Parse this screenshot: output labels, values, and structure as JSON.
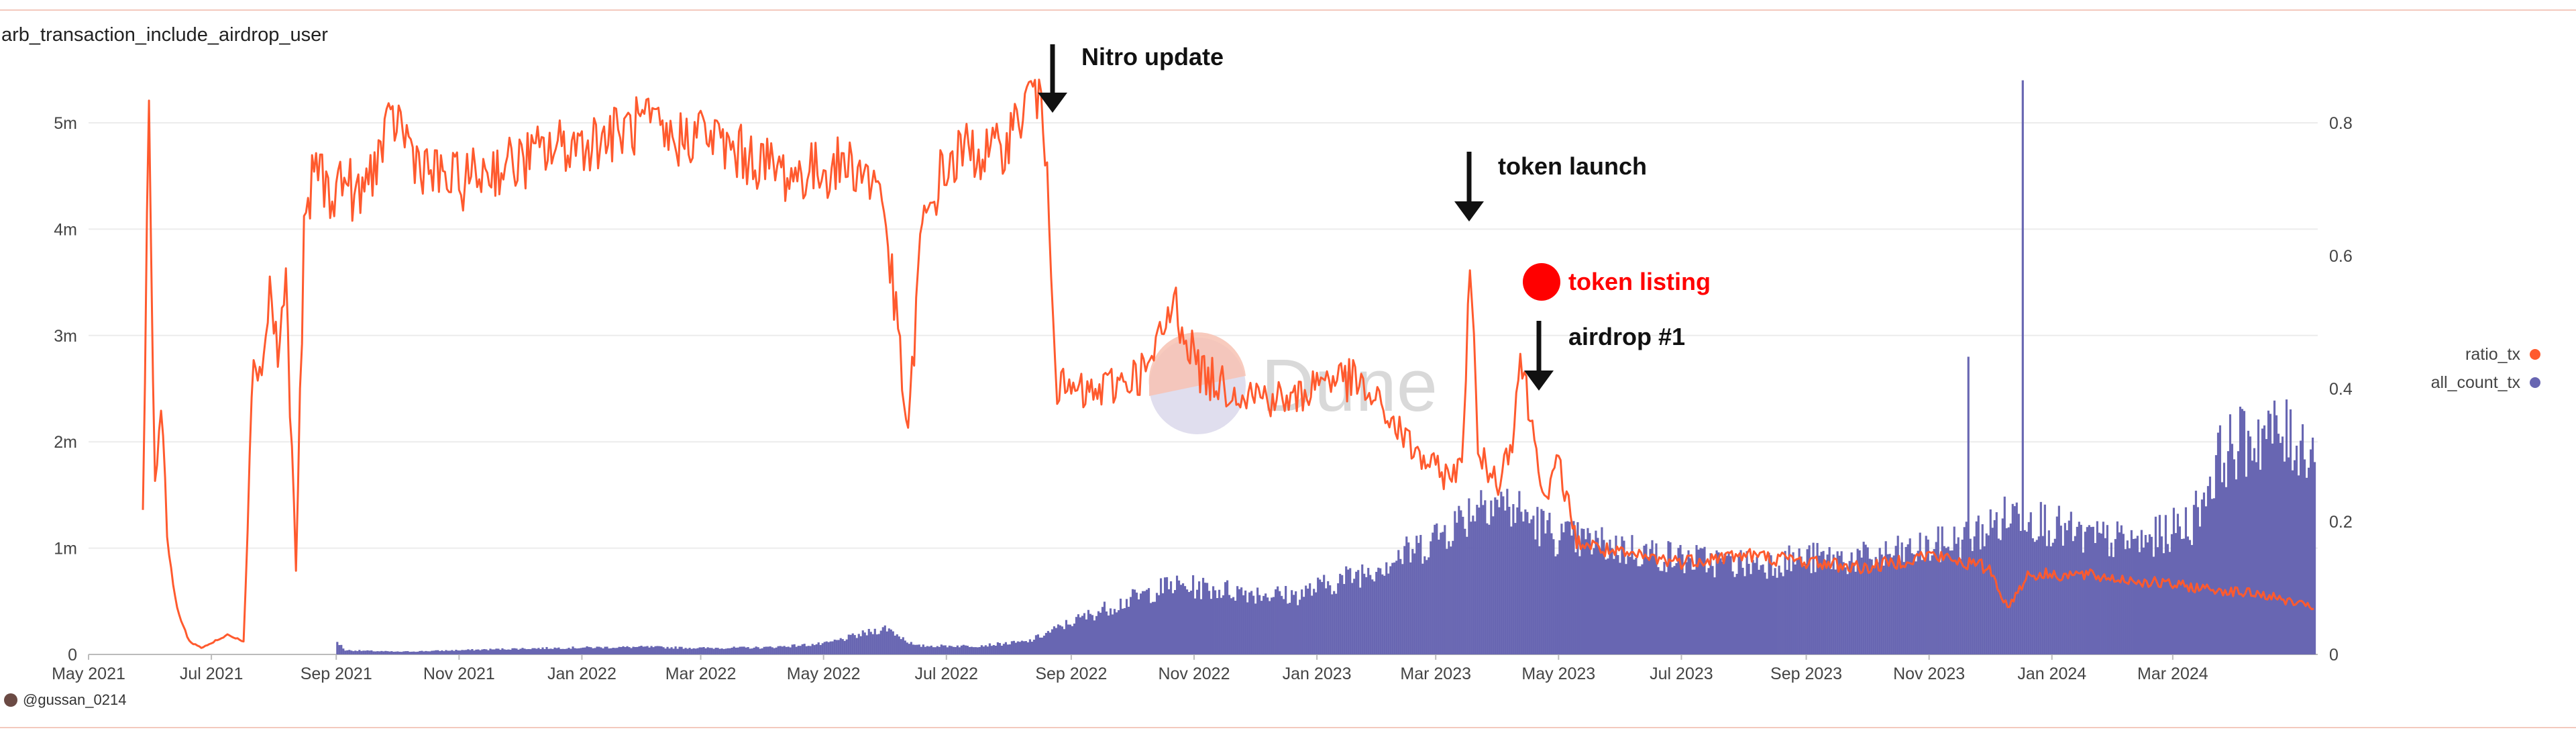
{
  "title": "arb_transaction_include_airdrop_user",
  "credit": "@gussan_0214",
  "watermark": "Dune",
  "colors": {
    "ratio": "#ff5a2e",
    "count": "#6866b2",
    "annotation": "#111111",
    "listing": "#ff0000"
  },
  "chart_data": {
    "type": "line",
    "series": [
      {
        "name": "ratio_tx",
        "type": "line",
        "axis": "right",
        "color": "#ff5a2e",
        "points": [
          [
            "2021-05-28",
            0.22
          ],
          [
            "2021-05-31",
            0.84
          ],
          [
            "2021-06-03",
            0.25
          ],
          [
            "2021-06-06",
            0.38
          ],
          [
            "2021-06-09",
            0.18
          ],
          [
            "2021-06-12",
            0.1
          ],
          [
            "2021-06-16",
            0.05
          ],
          [
            "2021-06-20",
            0.02
          ],
          [
            "2021-06-26",
            0.01
          ],
          [
            "2021-07-03",
            0.02
          ],
          [
            "2021-07-10",
            0.03
          ],
          [
            "2021-07-17",
            0.02
          ],
          [
            "2021-07-22",
            0.46
          ],
          [
            "2021-07-26",
            0.42
          ],
          [
            "2021-07-30",
            0.55
          ],
          [
            "2021-08-03",
            0.45
          ],
          [
            "2021-08-07",
            0.56
          ],
          [
            "2021-08-12",
            0.13
          ],
          [
            "2021-08-16",
            0.62
          ],
          [
            "2021-08-22",
            0.75
          ],
          [
            "2021-08-28",
            0.69
          ],
          [
            "2021-09-05",
            0.72
          ],
          [
            "2021-09-12",
            0.68
          ],
          [
            "2021-09-20",
            0.74
          ],
          [
            "2021-10-01",
            0.81
          ],
          [
            "2021-10-10",
            0.75
          ],
          [
            "2021-10-20",
            0.72
          ],
          [
            "2021-11-01",
            0.71
          ],
          [
            "2021-11-15",
            0.73
          ],
          [
            "2021-12-01",
            0.74
          ],
          [
            "2021-12-15",
            0.76
          ],
          [
            "2022-01-01",
            0.77
          ],
          [
            "2022-01-15",
            0.78
          ],
          [
            "2022-02-01",
            0.8
          ],
          [
            "2022-02-15",
            0.77
          ],
          [
            "2022-03-01",
            0.79
          ],
          [
            "2022-03-15",
            0.76
          ],
          [
            "2022-04-01",
            0.74
          ],
          [
            "2022-04-15",
            0.72
          ],
          [
            "2022-05-01",
            0.73
          ],
          [
            "2022-05-15",
            0.74
          ],
          [
            "2022-05-30",
            0.7
          ],
          [
            "2022-06-08",
            0.45
          ],
          [
            "2022-06-12",
            0.32
          ],
          [
            "2022-06-18",
            0.62
          ],
          [
            "2022-06-28",
            0.72
          ],
          [
            "2022-07-10",
            0.76
          ],
          [
            "2022-07-25",
            0.75
          ],
          [
            "2022-08-05",
            0.8
          ],
          [
            "2022-08-14",
            0.86
          ],
          [
            "2022-08-20",
            0.75
          ],
          [
            "2022-08-25",
            0.4
          ],
          [
            "2022-09-10",
            0.39
          ],
          [
            "2022-09-25",
            0.41
          ],
          [
            "2022-10-10",
            0.43
          ],
          [
            "2022-10-22",
            0.53
          ],
          [
            "2022-11-05",
            0.42
          ],
          [
            "2022-11-20",
            0.4
          ],
          [
            "2022-12-05",
            0.39
          ],
          [
            "2022-12-20",
            0.38
          ],
          [
            "2023-01-05",
            0.42
          ],
          [
            "2023-01-20",
            0.41
          ],
          [
            "2023-02-05",
            0.36
          ],
          [
            "2023-02-20",
            0.3
          ],
          [
            "2023-03-05",
            0.27
          ],
          [
            "2023-03-14",
            0.28
          ],
          [
            "2023-03-18",
            0.61
          ],
          [
            "2023-03-22",
            0.3
          ],
          [
            "2023-04-01",
            0.26
          ],
          [
            "2023-04-08",
            0.33
          ],
          [
            "2023-04-12",
            0.45
          ],
          [
            "2023-04-18",
            0.34
          ],
          [
            "2023-04-25",
            0.23
          ],
          [
            "2023-05-01",
            0.29
          ],
          [
            "2023-05-10",
            0.17
          ],
          [
            "2023-06-01",
            0.15
          ],
          [
            "2023-07-01",
            0.14
          ],
          [
            "2023-08-01",
            0.15
          ],
          [
            "2023-09-01",
            0.14
          ],
          [
            "2023-10-01",
            0.13
          ],
          [
            "2023-11-01",
            0.15
          ],
          [
            "2023-12-01",
            0.13
          ],
          [
            "2023-12-10",
            0.07
          ],
          [
            "2023-12-20",
            0.12
          ],
          [
            "2024-01-15",
            0.12
          ],
          [
            "2024-02-15",
            0.11
          ],
          [
            "2024-03-15",
            0.1
          ],
          [
            "2024-04-15",
            0.09
          ],
          [
            "2024-05-10",
            0.07
          ]
        ]
      },
      {
        "name": "all_count_tx",
        "type": "bar",
        "axis": "left",
        "color": "#6866b2",
        "points": [
          [
            "2021-05-28",
            0
          ],
          [
            "2021-08-31",
            0
          ],
          [
            "2021-09-01",
            120000
          ],
          [
            "2021-09-05",
            40000
          ],
          [
            "2021-10-01",
            25000
          ],
          [
            "2021-11-01",
            40000
          ],
          [
            "2021-12-01",
            55000
          ],
          [
            "2022-01-01",
            65000
          ],
          [
            "2022-02-01",
            70000
          ],
          [
            "2022-03-01",
            60000
          ],
          [
            "2022-04-01",
            65000
          ],
          [
            "2022-05-01",
            100000
          ],
          [
            "2022-06-01",
            250000
          ],
          [
            "2022-06-15",
            80000
          ],
          [
            "2022-07-15",
            80000
          ],
          [
            "2022-08-10",
            120000
          ],
          [
            "2022-08-31",
            300000
          ],
          [
            "2022-09-20",
            450000
          ],
          [
            "2022-10-20",
            650000
          ],
          [
            "2022-11-20",
            600000
          ],
          [
            "2022-12-20",
            550000
          ],
          [
            "2023-01-20",
            750000
          ],
          [
            "2023-02-20",
            1000000
          ],
          [
            "2023-03-15",
            1300000
          ],
          [
            "2023-03-25",
            1500000
          ],
          [
            "2023-04-10",
            1350000
          ],
          [
            "2023-05-01",
            1100000
          ],
          [
            "2023-06-01",
            1000000
          ],
          [
            "2023-07-01",
            900000
          ],
          [
            "2023-08-01",
            850000
          ],
          [
            "2023-09-01",
            900000
          ],
          [
            "2023-10-01",
            900000
          ],
          [
            "2023-11-01",
            1000000
          ],
          [
            "2023-11-20",
            1100000
          ],
          [
            "2023-12-01",
            1200000
          ],
          [
            "2023-12-15",
            1350000
          ],
          [
            "2024-01-15",
            1100000
          ],
          [
            "2024-02-15",
            1050000
          ],
          [
            "2024-03-10",
            1250000
          ],
          [
            "2024-03-25",
            1900000
          ],
          [
            "2024-04-15",
            2100000
          ],
          [
            "2024-05-10",
            1950000
          ]
        ],
        "spikes": [
          [
            "2023-11-20",
            2800000
          ],
          [
            "2023-12-17",
            5400000
          ]
        ]
      }
    ],
    "x_ticks": [
      "May 2021",
      "Jul 2021",
      "Sep 2021",
      "Nov 2021",
      "Jan 2022",
      "Mar 2022",
      "May 2022",
      "Jul 2022",
      "Sep 2022",
      "Nov 2022",
      "Jan 2023",
      "Mar 2023",
      "May 2023",
      "Jul 2023",
      "Sep 2023",
      "Nov 2023",
      "Jan 2024",
      "Mar 2024"
    ],
    "x_tick_dates": [
      "2021-05-01",
      "2021-07-01",
      "2021-09-01",
      "2021-11-01",
      "2022-01-01",
      "2022-03-01",
      "2022-05-01",
      "2022-07-01",
      "2022-09-01",
      "2022-11-01",
      "2023-01-01",
      "2023-03-01",
      "2023-05-01",
      "2023-07-01",
      "2023-09-01",
      "2023-11-01",
      "2024-01-01",
      "2024-03-01"
    ],
    "xlim": [
      "2021-05-01",
      "2024-05-12"
    ],
    "left_axis": {
      "ticks": [
        "0",
        "1m",
        "2m",
        "3m",
        "4m",
        "5m"
      ],
      "values": [
        0,
        1000000,
        2000000,
        3000000,
        4000000,
        5000000
      ],
      "ylim": [
        0,
        5000000
      ]
    },
    "right_axis": {
      "ticks": [
        "0",
        "0.2",
        "0.4",
        "0.6",
        "0.8"
      ],
      "values": [
        0,
        0.2,
        0.4,
        0.6,
        0.8
      ],
      "ylim": [
        0,
        0.8
      ]
    },
    "legend_position": "right",
    "grid": true,
    "annotations": [
      {
        "text": "Nitro update",
        "style": "arrow"
      },
      {
        "text": "token launch",
        "style": "arrow"
      },
      {
        "text": "token listing",
        "style": "dot"
      },
      {
        "text": "airdrop #1",
        "style": "arrow"
      }
    ]
  }
}
